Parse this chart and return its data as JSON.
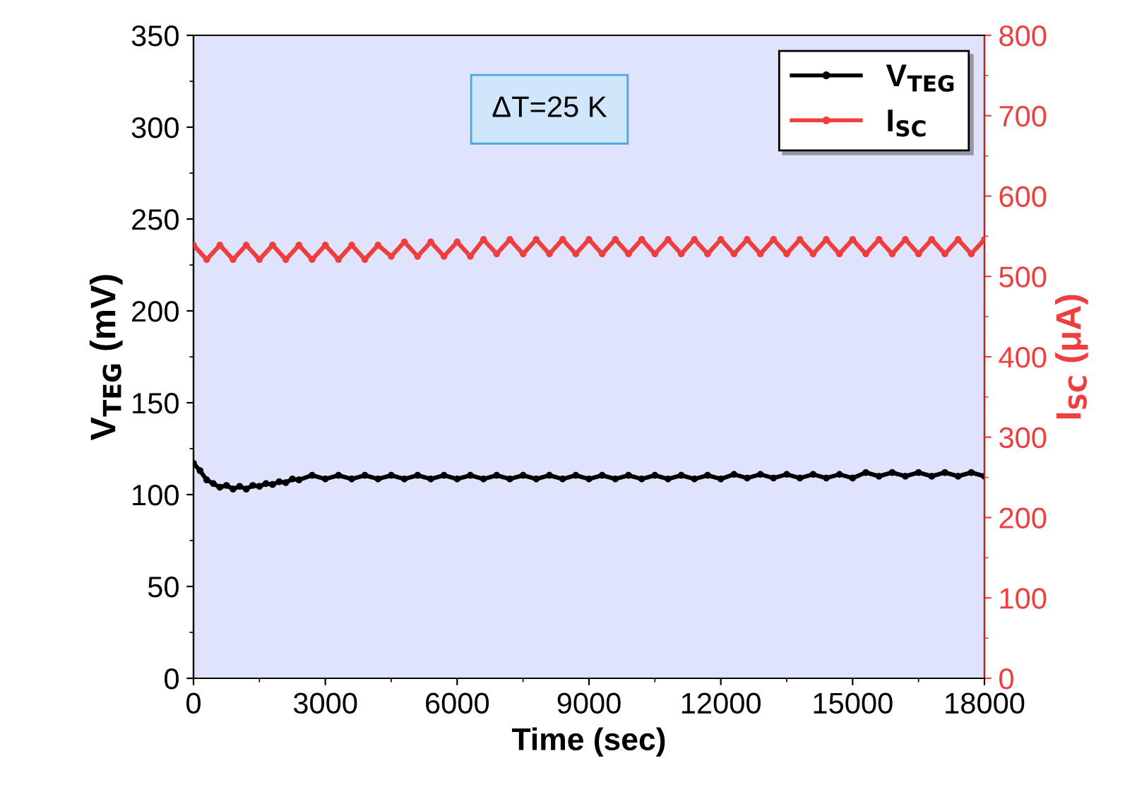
{
  "chart_data": {
    "type": "line",
    "xlabel": "Time (sec)",
    "ylabel": "V$_{TEG}$ (mV)",
    "y2label": "I$_{SC}$ (μA)",
    "annotations": [
      "ΔT=25 K"
    ],
    "xlim": [
      0,
      18000
    ],
    "xticks": [
      0,
      3000,
      6000,
      9000,
      12000,
      15000,
      18000
    ],
    "ylim": [
      0,
      350
    ],
    "yticks": [
      0,
      50,
      100,
      150,
      200,
      250,
      300,
      350
    ],
    "y2lim": [
      0,
      800
    ],
    "y2ticks": [
      0,
      100,
      200,
      300,
      400,
      500,
      600,
      700,
      800
    ],
    "legend": "top right",
    "marker": "circle",
    "line_style": "solid",
    "grid": false,
    "series": [
      {
        "name": "V$_{TEG}$",
        "color": "#000000",
        "axis": "y",
        "x": [
          0,
          150,
          300,
          450,
          600,
          750,
          900,
          1050,
          1200,
          1350,
          1500,
          1650,
          1800,
          1950,
          2100,
          2250,
          2400,
          2700,
          3000,
          3300,
          3600,
          3900,
          4200,
          4500,
          4800,
          5100,
          5400,
          5700,
          6000,
          6300,
          6600,
          6900,
          7200,
          7500,
          7800,
          8100,
          8400,
          8700,
          9000,
          9300,
          9600,
          9900,
          10200,
          10500,
          10800,
          11100,
          11400,
          11700,
          12000,
          12300,
          12600,
          12900,
          13200,
          13500,
          13800,
          14100,
          14400,
          14700,
          15000,
          15300,
          15600,
          15900,
          16200,
          16500,
          16800,
          17100,
          17400,
          17700,
          18000
        ],
        "values": [
          117,
          113,
          108,
          106,
          104,
          105,
          103,
          104.5,
          103,
          105,
          104.5,
          106,
          105.5,
          107,
          106.5,
          108.5,
          108,
          110.5,
          108.5,
          110.5,
          108.5,
          110.5,
          108.5,
          110.5,
          108.5,
          110.5,
          108.5,
          110.5,
          108.5,
          110.5,
          108.5,
          110.5,
          108.5,
          110.5,
          108.5,
          110.5,
          108.5,
          110.5,
          108.5,
          110.5,
          108.5,
          110.5,
          108.5,
          110.5,
          108.5,
          110.5,
          108.5,
          110.5,
          108.5,
          111,
          109,
          111,
          109,
          111,
          109,
          111,
          109,
          111,
          109,
          112,
          110,
          112,
          110,
          112,
          110,
          112,
          110,
          112,
          110
        ]
      },
      {
        "name": "I$_{SC}$",
        "color": "#ef3e3e",
        "axis": "y2",
        "x": [
          0,
          300,
          600,
          900,
          1200,
          1500,
          1800,
          2100,
          2400,
          2700,
          3000,
          3300,
          3600,
          3900,
          4200,
          4500,
          4800,
          5100,
          5400,
          5700,
          6000,
          6300,
          6600,
          6900,
          7200,
          7500,
          7800,
          8100,
          8400,
          8700,
          9000,
          9300,
          9600,
          9900,
          10200,
          10500,
          10800,
          11100,
          11400,
          11700,
          12000,
          12300,
          12600,
          12900,
          13200,
          13500,
          13800,
          14100,
          14400,
          14700,
          15000,
          15300,
          15600,
          15900,
          16200,
          16500,
          16800,
          17100,
          17400,
          17700,
          18000
        ],
        "values": [
          539,
          521,
          539,
          521,
          539,
          521,
          539,
          521,
          539,
          521,
          539,
          521,
          539,
          521,
          539,
          525,
          543,
          525,
          543,
          525,
          543,
          525,
          546,
          528,
          546,
          528,
          546,
          528,
          546,
          528,
          546,
          528,
          546,
          528,
          546,
          528,
          546,
          528,
          546,
          528,
          546,
          528,
          546,
          528,
          546,
          528,
          546,
          528,
          546,
          528,
          546,
          528,
          546,
          528,
          546,
          528,
          546,
          528,
          546,
          528,
          546
        ]
      }
    ]
  }
}
